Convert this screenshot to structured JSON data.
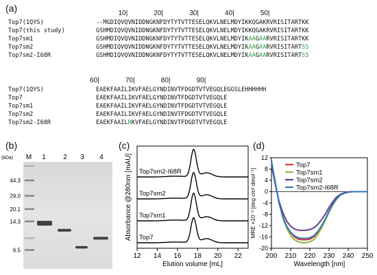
{
  "panel_a": {
    "label": "(a)",
    "block1": {
      "ticks": [
        {
          "text": "10|",
          "col": 10
        },
        {
          "text": "20|",
          "col": 20
        },
        {
          "text": "30|",
          "col": 30
        },
        {
          "text": "40|",
          "col": 40
        },
        {
          "text": "50|",
          "col": 50
        }
      ],
      "rows": [
        {
          "name": "Top7(1QYS)",
          "seq": [
            {
              "t": "--MGDIQVQVNIDDNGKNFDYTYTVTTESELQKVLNELMDYIKKQGAKRVRISITARTKK",
              "g": false
            }
          ]
        },
        {
          "name": "Top7(this study)",
          "seq": [
            {
              "t": "GSHMDIQVQVNIDDNGKNFDYTYTVTTESELQKVLNELMDYIKKQGAKRVRISITARTKK",
              "g": false
            }
          ]
        },
        {
          "name": "Top7sm1",
          "seq": [
            {
              "t": "GSHMDIQVQVNIDDNGKNFDYTYTVTTESELQKVLNELMDYIK",
              "g": false
            },
            {
              "t": "AA",
              "g": true
            },
            {
              "t": "G",
              "g": false
            },
            {
              "t": "AA",
              "g": true
            },
            {
              "t": "RVRISITARTKK",
              "g": false
            }
          ]
        },
        {
          "name": "Top7sm2",
          "seq": [
            {
              "t": "GSHMDIQVQVNIDDNGKNFDYTYTVTTESELQKVLNELMDYIK",
              "g": false
            },
            {
              "t": "AA",
              "g": true
            },
            {
              "t": "G",
              "g": false
            },
            {
              "t": "AA",
              "g": true
            },
            {
              "t": "RVRISITART",
              "g": false
            },
            {
              "t": "SS",
              "g": true
            }
          ]
        },
        {
          "name": "Top7sm2-I68R",
          "seq": [
            {
              "t": "GSHMDIQVQVNIDDNGKNFDYTYTVTTESELQKVLNELMDYIK",
              "g": false
            },
            {
              "t": "AA",
              "g": true
            },
            {
              "t": "G",
              "g": false
            },
            {
              "t": "AA",
              "g": true
            },
            {
              "t": "RVRISITART",
              "g": false
            },
            {
              "t": "SS",
              "g": true
            }
          ]
        }
      ]
    },
    "block2": {
      "ticks": [
        {
          "text": "60|",
          "col": 2
        },
        {
          "text": "70|",
          "col": 12
        },
        {
          "text": "80|",
          "col": 22
        },
        {
          "text": "90|",
          "col": 32
        }
      ],
      "rows": [
        {
          "name": "Top7(1QYS)",
          "seq": [
            {
              "t": "EAEKFAAILIKVFAELGYNDINVTFDGDTVTVEGQLEGGSLEHHHHHH",
              "g": false
            }
          ]
        },
        {
          "name": "Top7",
          "seq": [
            {
              "t": "EAEKFAAILIKVFAELGYNDINVTFDGDTVTVEGQLE",
              "g": false
            }
          ]
        },
        {
          "name": "Top7sm1",
          "seq": [
            {
              "t": "EAEKFAAILIKVFAELGYNDINVTFDGDTVTVEGQLE",
              "g": false
            }
          ]
        },
        {
          "name": "Top7sm2",
          "seq": [
            {
              "t": "EAEKFAAILIKVFAELGYNDINVTFDGDTVTVEGQLE",
              "g": false
            }
          ]
        },
        {
          "name": "Top7sm2-I68R",
          "seq": [
            {
              "t": "EAEKFAAIL",
              "g": false
            },
            {
              "t": "R",
              "g": true
            },
            {
              "t": "KVFAELGYNDINVTFDGDTVTVEGQLE",
              "g": false
            }
          ]
        }
      ]
    }
  },
  "panel_b": {
    "label": "(b)",
    "unit": "(kDa)",
    "lane_labels": [
      "M",
      "1",
      "2",
      "3",
      "4"
    ],
    "markers": [
      "44.3",
      "29.0",
      "20.1",
      "14.3",
      "6.5"
    ],
    "marker_values": [
      44.3,
      29.0,
      20.1,
      14.3,
      6.5
    ]
  },
  "chart_data": [
    {
      "panel": "(c)",
      "type": "line",
      "xlabel": "Elution volume [mL]",
      "ylabel": "Absorbance @280nm [mAU]",
      "xlim": [
        12,
        23
      ],
      "xticks": [
        "12",
        "14",
        "16",
        "18",
        "20",
        "22"
      ],
      "series": [
        {
          "name": "Top7",
          "offset": 0,
          "peak_x": 17.6,
          "peak_h": 0.95
        },
        {
          "name": "Top7sm1",
          "offset": 1,
          "peak_x": 17.6,
          "peak_h": 1.05
        },
        {
          "name": "Top7sm2",
          "offset": 2,
          "peak_x": 17.6,
          "peak_h": 1.0
        },
        {
          "name": "Top7sm2-I68R",
          "offset": 3,
          "peak_x": 17.6,
          "peak_h": 1.05
        }
      ],
      "grid": false,
      "colors": {
        "line": "#000000"
      }
    },
    {
      "panel": "(d)",
      "type": "line",
      "xlabel": "Wavelength [nm]",
      "ylabel": "MRE ×10⁻³ [deg cm² dmol⁻¹]",
      "xlim": [
        200,
        250
      ],
      "ylim": [
        -20,
        12
      ],
      "xticks": [
        "200",
        "210",
        "220",
        "230",
        "240",
        "250"
      ],
      "yticks": [
        "12",
        "8",
        "4",
        "0",
        "-4",
        "-8",
        "-12",
        "-16",
        "-20"
      ],
      "legend": "top-right",
      "x": [
        200,
        202,
        204,
        206,
        208,
        210,
        212,
        214,
        216,
        218,
        220,
        222,
        224,
        226,
        228,
        230,
        232,
        234,
        236,
        238,
        240,
        242,
        244,
        246,
        248,
        250
      ],
      "series": [
        {
          "name": "Top7",
          "color": "#e0343c",
          "values": [
            10,
            3,
            -4,
            -9,
            -12.5,
            -14.5,
            -16,
            -16.8,
            -17,
            -17,
            -16.8,
            -16,
            -14.5,
            -12.5,
            -10,
            -7,
            -4.5,
            -2.5,
            -1.2,
            -0.5,
            -0.2,
            0,
            0,
            0,
            0,
            0
          ]
        },
        {
          "name": "Top7sm1",
          "color": "#8fb83a",
          "values": [
            10.5,
            3.5,
            -4,
            -9.5,
            -13,
            -15.5,
            -17,
            -17.7,
            -18,
            -18,
            -17.7,
            -17,
            -15.3,
            -13,
            -10.3,
            -7.3,
            -4.7,
            -2.6,
            -1.2,
            -0.5,
            -0.2,
            0,
            0,
            0,
            0,
            0
          ]
        },
        {
          "name": "Top7sm2",
          "color": "#6a3a8a",
          "values": [
            9.5,
            2.5,
            -3.5,
            -7.5,
            -10.5,
            -12.2,
            -13.2,
            -13.6,
            -13.7,
            -13.6,
            -13.4,
            -12.8,
            -11.7,
            -10,
            -8,
            -5.6,
            -3.5,
            -1.9,
            -0.9,
            -0.4,
            -0.1,
            0,
            0,
            0,
            0,
            0
          ]
        },
        {
          "name": "Top7sm2-I68R",
          "color": "#2f78b8",
          "values": [
            11,
            3,
            -4,
            -9,
            -12.3,
            -14.3,
            -15.6,
            -16.3,
            -16.5,
            -16.5,
            -16.3,
            -15.6,
            -14.2,
            -12.2,
            -9.7,
            -6.8,
            -4.3,
            -2.4,
            -1.1,
            -0.5,
            -0.2,
            0,
            0,
            0,
            0,
            0
          ]
        }
      ]
    }
  ]
}
